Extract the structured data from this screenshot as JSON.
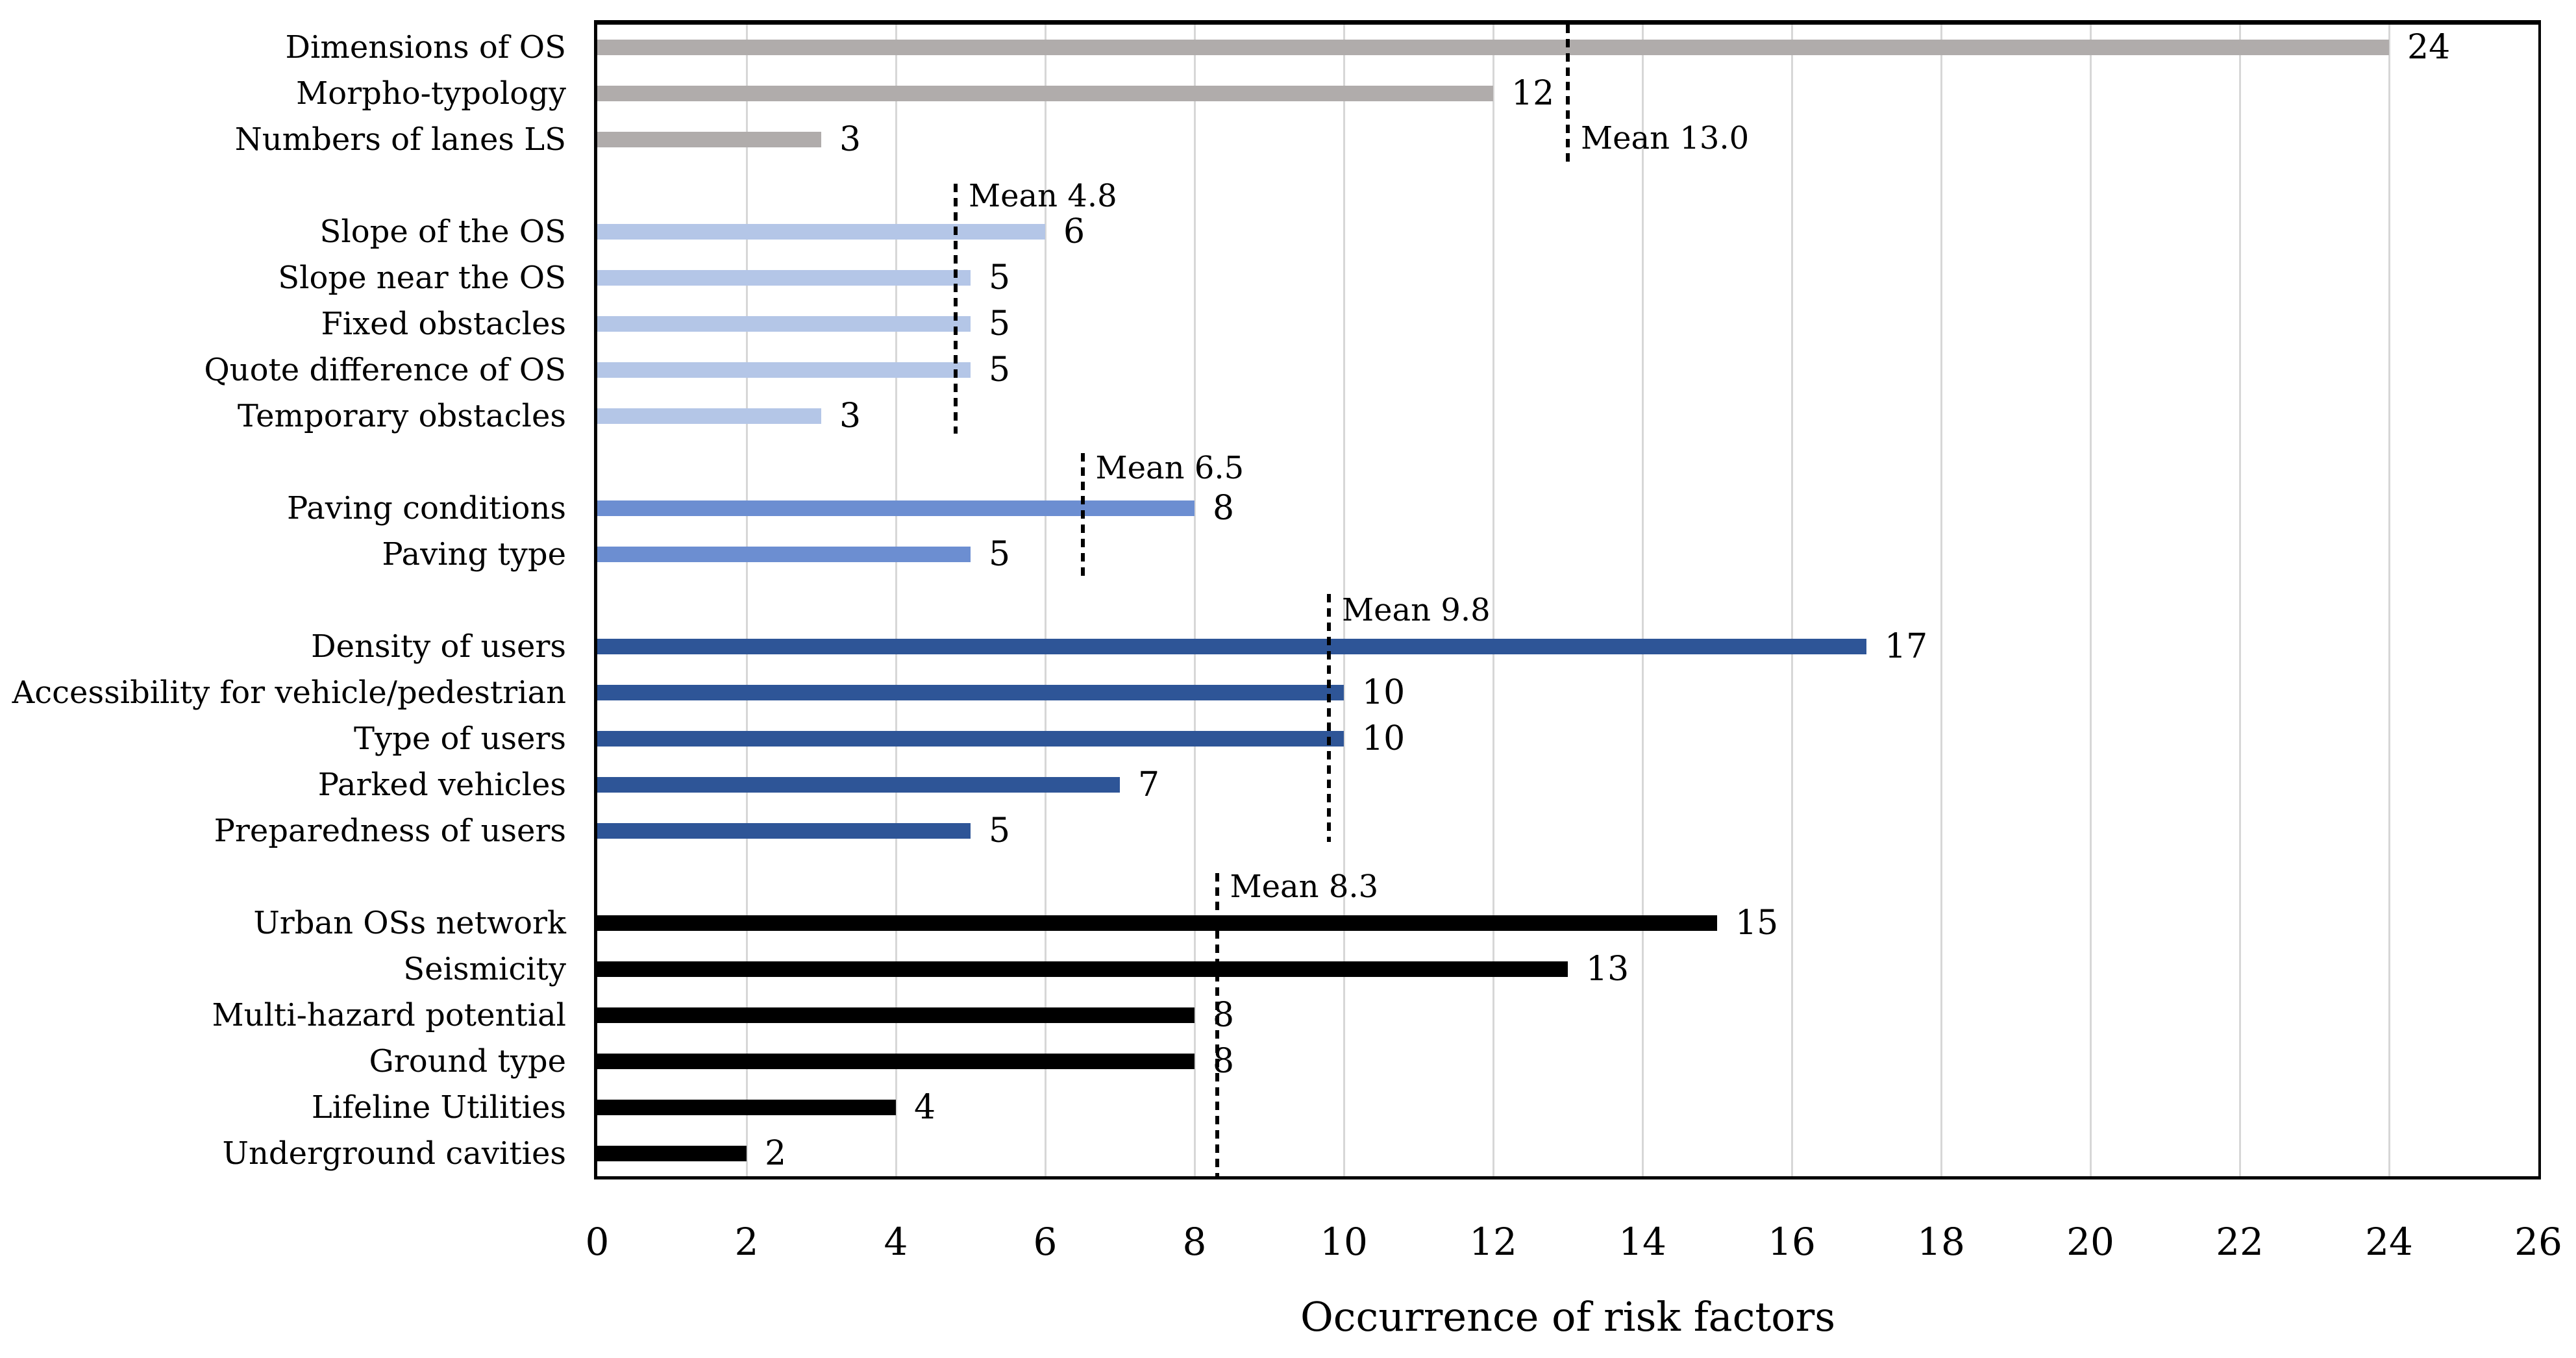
{
  "chart_data": {
    "type": "bar",
    "orientation": "horizontal",
    "title": "",
    "xlabel": "Occurrence of risk factors",
    "ylabel": "",
    "xlim": [
      0,
      26
    ],
    "xtick_labels": [
      "0",
      "2",
      "4",
      "6",
      "8",
      "10",
      "12",
      "14",
      "16",
      "18",
      "20",
      "22",
      "24",
      "26"
    ],
    "grid": true,
    "legend": false,
    "value_labels": true,
    "mean_line_style": "dotted",
    "colors": {
      "gridline": "#d7d7d7",
      "axis": "#000000",
      "text": "#000000"
    },
    "groups": [
      {
        "color": "#b0acab",
        "mean": 13.0,
        "mean_label": "Mean 13.0",
        "items": [
          {
            "label": "Dimensions of OS",
            "value": 24
          },
          {
            "label": "Morpho-typology",
            "value": 12
          },
          {
            "label": "Numbers of lanes LS",
            "value": 3
          }
        ]
      },
      {
        "color": "#b4c6e7",
        "mean": 4.8,
        "mean_label": "Mean 4.8",
        "items": [
          {
            "label": "Slope of the OS",
            "value": 6
          },
          {
            "label": "Slope near the OS",
            "value": 5
          },
          {
            "label": "Fixed obstacles",
            "value": 5
          },
          {
            "label": "Quote difference of OS",
            "value": 5
          },
          {
            "label": "Temporary obstacles",
            "value": 3
          }
        ]
      },
      {
        "color": "#6c8ed1",
        "mean": 6.5,
        "mean_label": "Mean 6.5",
        "items": [
          {
            "label": "Paving conditions",
            "value": 8
          },
          {
            "label": "Paving type",
            "value": 5
          }
        ]
      },
      {
        "color": "#2e5597",
        "mean": 9.8,
        "mean_label": "Mean 9.8",
        "items": [
          {
            "label": "Density of users",
            "value": 17
          },
          {
            "label": "Accessibility for vehicle/pedestrian",
            "value": 10
          },
          {
            "label": "Type of users",
            "value": 10
          },
          {
            "label": "Parked vehicles",
            "value": 7
          },
          {
            "label": "Preparedness of users",
            "value": 5
          }
        ]
      },
      {
        "color": "#000000",
        "mean": 8.3,
        "mean_label": "Mean 8.3",
        "items": [
          {
            "label": "Urban OSs network",
            "value": 15
          },
          {
            "label": "Seismicity",
            "value": 13
          },
          {
            "label": "Multi-hazard potential",
            "value": 8
          },
          {
            "label": "Ground type",
            "value": 8
          },
          {
            "label": "Lifeline Utilities",
            "value": 4
          },
          {
            "label": "Underground cavities",
            "value": 2
          }
        ]
      }
    ]
  }
}
